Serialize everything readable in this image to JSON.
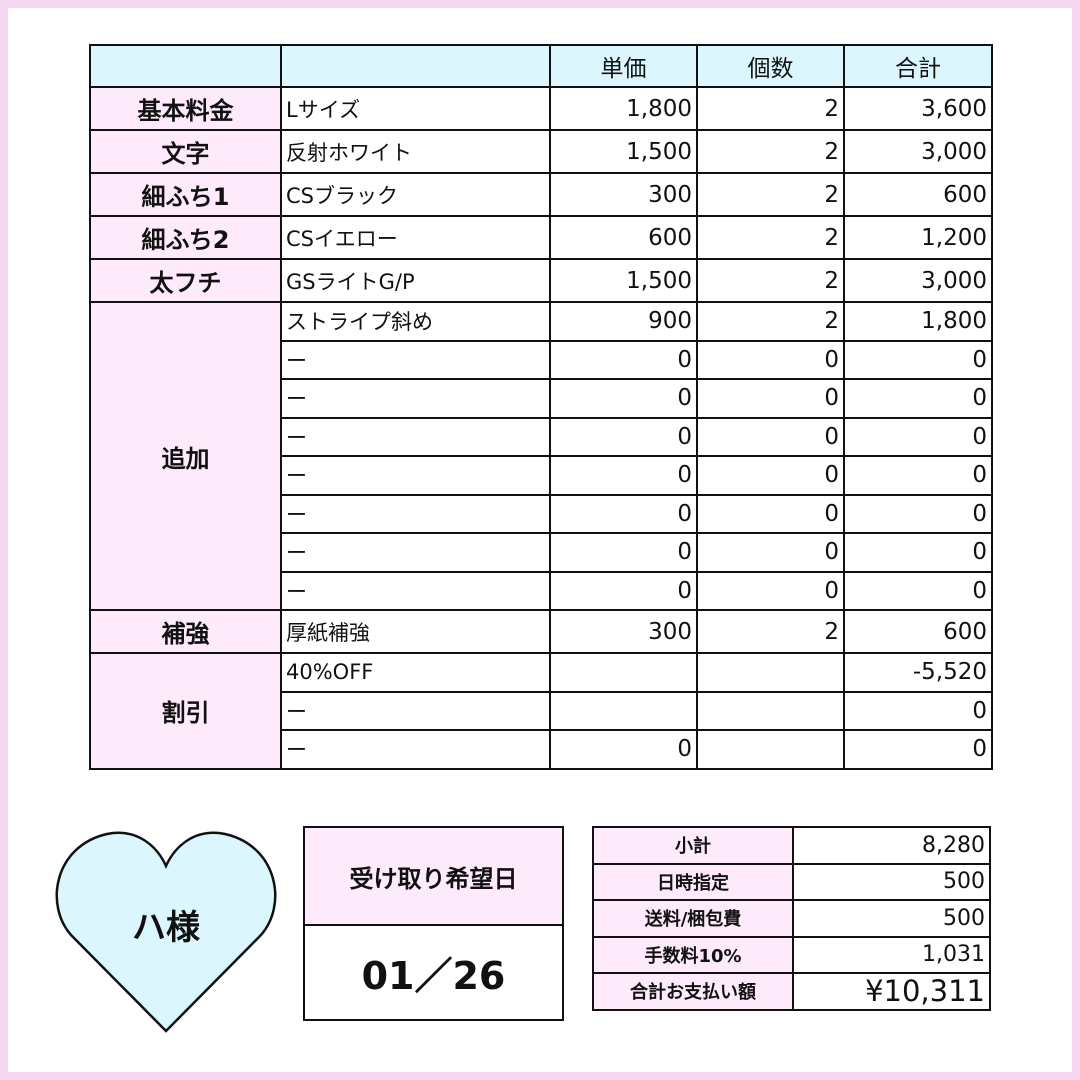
{
  "colors": {
    "frame": "#f6d9f0",
    "header_bg": "#dbf6fd",
    "label_bg": "#fdeafb",
    "heart_fill": "#dbf6fd"
  },
  "table": {
    "headers": [
      "",
      "",
      "単価",
      "個数",
      "合計"
    ],
    "groups": [
      {
        "category": "基本料金",
        "rows": [
          {
            "item": "Lサイズ",
            "price": "1,800",
            "qty": "2",
            "total": "3,600"
          }
        ]
      },
      {
        "category": "文字",
        "rows": [
          {
            "item": "反射ホワイト",
            "price": "1,500",
            "qty": "2",
            "total": "3,000"
          }
        ]
      },
      {
        "category": "細ふち1",
        "rows": [
          {
            "item": "CSブラック",
            "price": "300",
            "qty": "2",
            "total": "600"
          }
        ]
      },
      {
        "category": "細ふち2",
        "rows": [
          {
            "item": "CSイエロー",
            "price": "600",
            "qty": "2",
            "total": "1,200"
          }
        ]
      },
      {
        "category": "太フチ",
        "rows": [
          {
            "item": "GSライトG/P",
            "price": "1,500",
            "qty": "2",
            "total": "3,000"
          }
        ]
      },
      {
        "category": "追加",
        "dotted": true,
        "rows": [
          {
            "item": "ストライプ斜め",
            "price": "900",
            "qty": "2",
            "total": "1,800"
          },
          {
            "item": "ー",
            "price": "0",
            "qty": "0",
            "total": "0"
          },
          {
            "item": "ー",
            "price": "0",
            "qty": "0",
            "total": "0"
          },
          {
            "item": "ー",
            "price": "0",
            "qty": "0",
            "total": "0"
          },
          {
            "item": "ー",
            "price": "0",
            "qty": "0",
            "total": "0"
          },
          {
            "item": "ー",
            "price": "0",
            "qty": "0",
            "total": "0"
          },
          {
            "item": "ー",
            "price": "0",
            "qty": "0",
            "total": "0"
          },
          {
            "item": "ー",
            "price": "0",
            "qty": "0",
            "total": "0"
          }
        ]
      },
      {
        "category": "補強",
        "rows": [
          {
            "item": "厚紙補強",
            "price": "300",
            "qty": "2",
            "total": "600"
          }
        ]
      },
      {
        "category": "割引",
        "rows": [
          {
            "item": "40%OFF",
            "price": "",
            "qty": "",
            "total": "-5,520"
          },
          {
            "item": "ー",
            "price": "",
            "qty": "",
            "total": "0"
          },
          {
            "item": "ー",
            "price": "0",
            "qty": "",
            "total": "0"
          }
        ]
      }
    ]
  },
  "customer": {
    "name": "ハ様"
  },
  "pickup": {
    "label": "受け取り希望日",
    "date": "01／26"
  },
  "summary": [
    {
      "label": "小計",
      "value": "8,280"
    },
    {
      "label": "日時指定",
      "value": "500"
    },
    {
      "label": "送料/梱包費",
      "value": "500"
    },
    {
      "label": "手数料10%",
      "value": "1,031"
    },
    {
      "label": "合計お支払い額",
      "value": "¥10,311"
    }
  ]
}
